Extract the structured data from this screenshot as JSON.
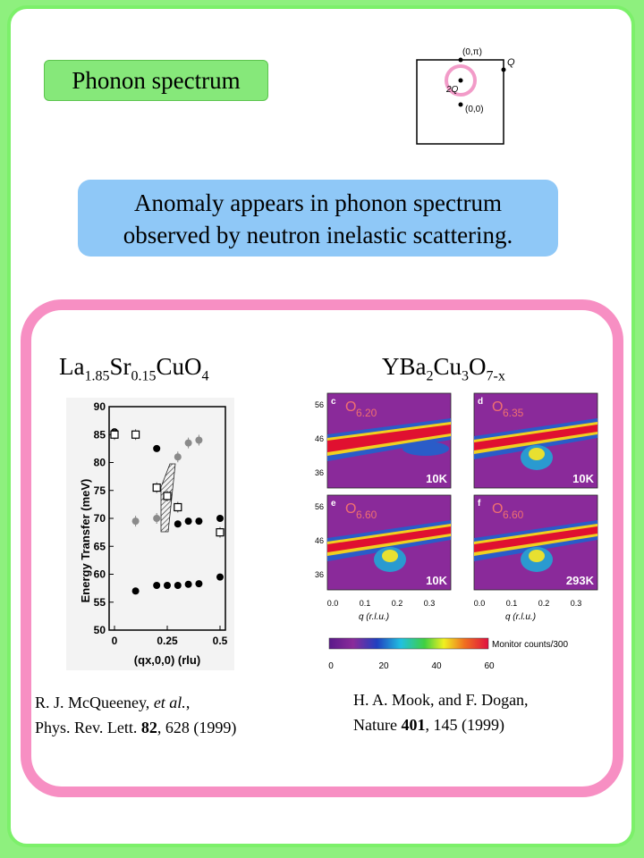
{
  "title": "Phonon spectrum",
  "bz_diagram": {
    "label_top": "(0,π)",
    "label_q": "Q",
    "label_2q": "2Q",
    "label_origin": "(0,0)"
  },
  "anomaly_text_line1": "Anomaly appears in phonon spectrum",
  "anomaly_text_line2": "observed  by neutron inelastic scattering.",
  "left_formula": {
    "p1": "La",
    "s1": "1.85",
    "p2": "Sr",
    "s2": "0.15",
    "p3": "CuO",
    "s3": "4"
  },
  "right_formula": {
    "p1": "YBa",
    "s1": "2",
    "p2": "Cu",
    "s2": "3",
    "p3": "O",
    "s3": "7-x"
  },
  "ref_left": {
    "line1a": "R. J. McQueeney, ",
    "line1b": "et al.",
    "line1c": ",",
    "line2a": "Phys. Rev. Lett. ",
    "line2b": "82",
    "line2c": ", 628 (1999)"
  },
  "ref_right": {
    "line1": "H. A. Mook, and F. Dogan,",
    "line2a": "Nature ",
    "line2b": "401",
    "line2c": ", 145 (1999)"
  },
  "chart_data": [
    {
      "type": "scatter",
      "xlabel": "(qx,0,0) (rlu)",
      "ylabel": "Energy Transfer (meV)",
      "ylim": [
        50,
        90
      ],
      "xlim": [
        0,
        0.5
      ],
      "y_ticks": [
        "50",
        "55",
        "60",
        "65",
        "70",
        "75",
        "80",
        "85",
        "90"
      ],
      "x_ticks": [
        "0",
        "0.25",
        "0.5"
      ],
      "series": [
        {
          "marker": "black-filled",
          "points": [
            [
              0.0,
              85.5
            ],
            [
              0.1,
              85
            ],
            [
              0.2,
              82.5
            ],
            [
              0.3,
              69
            ],
            [
              0.35,
              69.5
            ],
            [
              0.4,
              69.5
            ],
            [
              0.5,
              70
            ],
            [
              0.1,
              57
            ],
            [
              0.2,
              58
            ],
            [
              0.25,
              58
            ],
            [
              0.3,
              58
            ],
            [
              0.35,
              58.2
            ],
            [
              0.4,
              58.3
            ],
            [
              0.5,
              59.5
            ]
          ]
        },
        {
          "marker": "grey-filled",
          "points": [
            [
              0.1,
              69.5
            ],
            [
              0.2,
              70
            ],
            [
              0.3,
              81
            ],
            [
              0.35,
              83.5
            ],
            [
              0.4,
              84
            ]
          ]
        },
        {
          "marker": "open-square",
          "points": [
            [
              0.0,
              85
            ],
            [
              0.1,
              85
            ],
            [
              0.2,
              75.5
            ],
            [
              0.25,
              74
            ],
            [
              0.3,
              72
            ],
            [
              0.5,
              67.5
            ]
          ]
        }
      ]
    },
    {
      "type": "heatmap",
      "panels": [
        {
          "letter": "c",
          "label": "O",
          "sub": "6.20",
          "temp": "10K"
        },
        {
          "letter": "d",
          "label": "O",
          "sub": "6.35",
          "temp": "10K"
        },
        {
          "letter": "e",
          "label": "O",
          "sub": "6.60",
          "temp": "10K"
        },
        {
          "letter": "f",
          "label": "O",
          "sub": "6.60",
          "temp": "293K"
        }
      ],
      "y_ticks": [
        "56",
        "46",
        "36"
      ],
      "x_ticks": [
        "0.0",
        "0.1",
        "0.2",
        "0.3"
      ],
      "xlabel": "q (r.l.u.)",
      "colorbar_label": "Monitor counts/300",
      "colorbar_ticks": [
        "0",
        "20",
        "40",
        "60"
      ]
    }
  ]
}
